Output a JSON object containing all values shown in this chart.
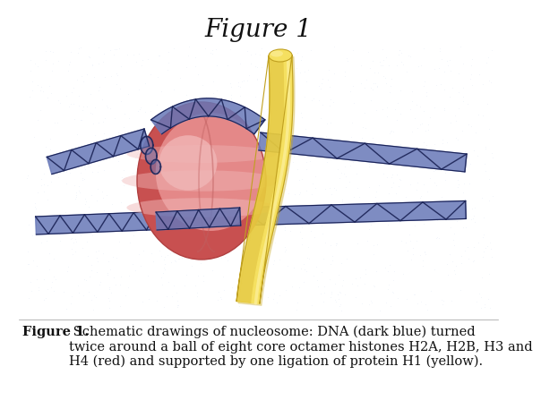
{
  "title": "Figure 1",
  "title_fontsize": 20,
  "caption_bold": "Figure 1.",
  "caption_normal": " Schematic drawings of nucleosome: DNA (dark blue) turned\ntwice around a ball of eight core octamer histones H2A, H2B, H3 and\nH4 (red) and supported by one ligation of protein H1 (yellow).",
  "caption_fontsize": 10.5,
  "fig_bg": "#ffffff",
  "ball_red": "#c85050",
  "ball_pink": "#f0a0a0",
  "ball_light": "#f8d0d0",
  "dna_blue": "#6878b8",
  "dna_dark": "#1a2255",
  "h1_yellow": "#f5e060",
  "h1_yellow_mid": "#e8cc40",
  "h1_yellow_dark": "#c0a020",
  "h1_yellow_light": "#fdf0a0",
  "stripe_pink": "#f0b8b8",
  "bg_dots": "#e8eef8"
}
